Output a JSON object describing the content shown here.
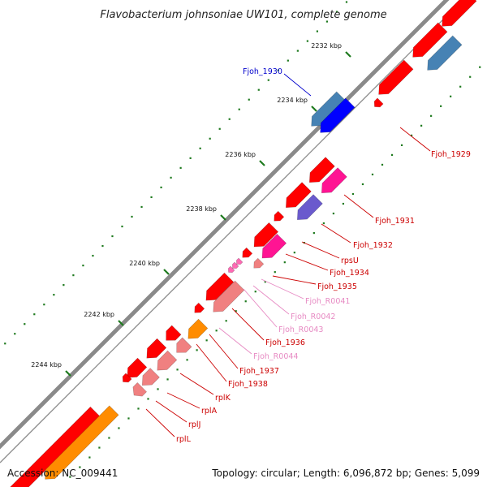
{
  "title": "Flavobacterium johnsoniae UW101, complete genome",
  "footer": {
    "accession": "Accession: NC_009441",
    "summary": "Topology: circular; Length: 6,096,872 bp; Genes: 5,099"
  },
  "colors": {
    "backbone": "#8a8a8a",
    "tick_major": "#1f7a1f",
    "tick_minor": "#1f7a1f",
    "cds_red": "#ff0000",
    "cds_blue": "#0000ff",
    "cds_steelblue": "#4682b4",
    "cds_pink": "#f08080",
    "cds_magenta": "#ff1493",
    "cds_purple": "#6a5acd",
    "cds_orange": "#ff8c00",
    "rna_pink": "#ff69b4",
    "label_red": "#cc0000",
    "label_blue": "#0000cc",
    "label_pink": "#e78ac3"
  },
  "ticks": [
    {
      "label": "2232 kbp"
    },
    {
      "label": "2234 kbp"
    },
    {
      "label": "2236 kbp"
    },
    {
      "label": "2238 kbp"
    },
    {
      "label": "2240 kbp"
    },
    {
      "label": "2242 kbp"
    },
    {
      "label": "2244 kbp"
    }
  ],
  "gene_labels": [
    {
      "name": "Fjoh_1930",
      "color": "label_blue"
    },
    {
      "name": "Fjoh_1929",
      "color": "label_red"
    },
    {
      "name": "Fjoh_1931",
      "color": "label_red"
    },
    {
      "name": "Fjoh_1932",
      "color": "label_red"
    },
    {
      "name": "rpsU",
      "color": "label_red"
    },
    {
      "name": "Fjoh_1934",
      "color": "label_red"
    },
    {
      "name": "Fjoh_1935",
      "color": "label_red"
    },
    {
      "name": "Fjoh_R0041",
      "color": "label_pink"
    },
    {
      "name": "Fjoh_R0042",
      "color": "label_pink"
    },
    {
      "name": "Fjoh_R0043",
      "color": "label_pink"
    },
    {
      "name": "Fjoh_1936",
      "color": "label_red"
    },
    {
      "name": "Fjoh_R0044",
      "color": "label_pink"
    },
    {
      "name": "Fjoh_1937",
      "color": "label_red"
    },
    {
      "name": "Fjoh_1938",
      "color": "label_red"
    },
    {
      "name": "rplK",
      "color": "label_red"
    },
    {
      "name": "rplA",
      "color": "label_red"
    },
    {
      "name": "rplJ",
      "color": "label_red"
    },
    {
      "name": "rplL",
      "color": "label_red"
    }
  ]
}
